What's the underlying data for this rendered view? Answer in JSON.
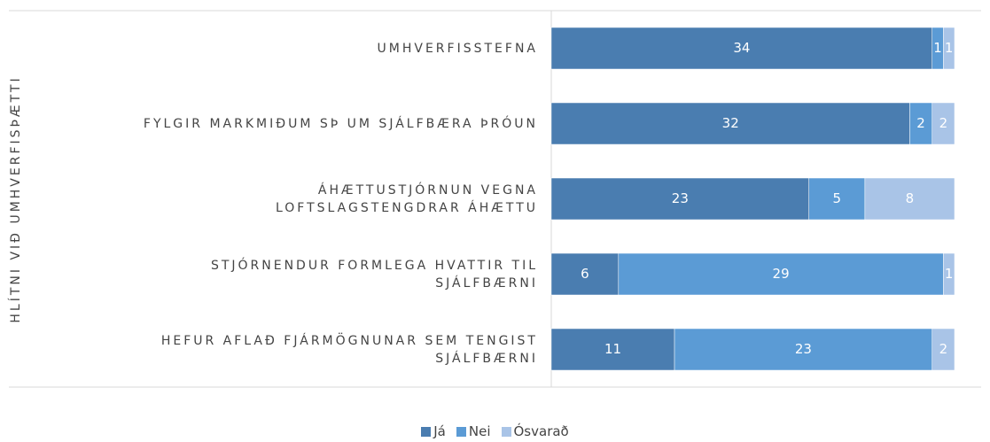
{
  "chart_data": {
    "type": "stacked_barh",
    "y_label": "HLÍTNI VIÐ UMHVERFISÞÆTTI",
    "categories": [
      "UMHVERFISSTEFNA",
      "FYLGIR MARKMIÐUM SÞ UM SJÁLFBÆRA ÞRÓUN",
      "ÁHÆTTUSTJÓRNUN VEGNA\nLOFTSLAGSTENGDRAR ÁHÆTTU",
      "STJÓRNENDUR FORMLEGA HVATTIR TIL\nSJÁLFBÆRNI",
      "HEFUR AFLAÐ FJÁRMÖGNUNAR SEM TENGIST\nSJÁLFBÆRNI"
    ],
    "series": [
      {
        "name": "Já",
        "color": "#4a7db0",
        "values": [
          34,
          32,
          23,
          6,
          11
        ]
      },
      {
        "name": "Nei",
        "color": "#5b9bd5",
        "values": [
          1,
          2,
          5,
          29,
          23
        ]
      },
      {
        "name": "Ósvarað",
        "color": "#a9c4e7",
        "values": [
          1,
          2,
          8,
          1,
          2
        ]
      }
    ],
    "xlim": [
      0,
      36
    ],
    "legend": "bottom"
  }
}
